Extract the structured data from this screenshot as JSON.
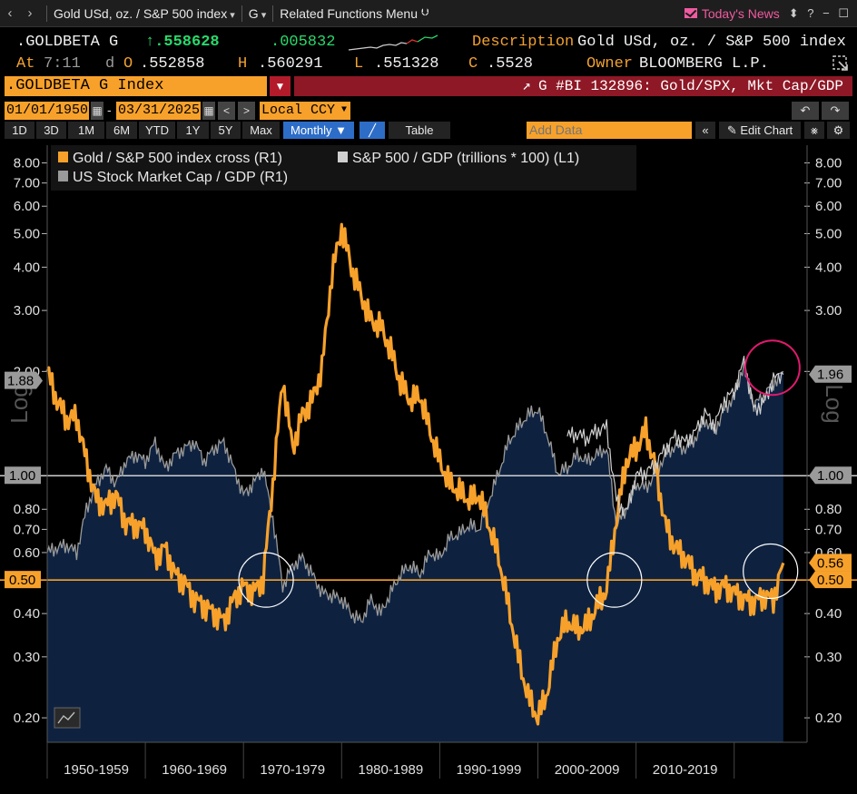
{
  "nav": {
    "back_icon": "chevron-left-icon",
    "forward_icon": "chevron-right-icon",
    "security_menu": "Gold USd, oz. / S&P 500 index",
    "function": "G",
    "related": "Related Functions Menu",
    "related_icon": "double-chevron-down-icon",
    "today_news": "Today's News",
    "window_controls": "⬍ ? − ☐"
  },
  "quote": {
    "ticker": ".GOLDBETA G",
    "last": "↑.558628",
    "change": ".005832",
    "at_label": "At",
    "time": "7:11",
    "d_label": "d",
    "open_label": "O",
    "open": ".552858",
    "high_label": "H",
    "high": ".560291",
    "low_label": "L",
    "low": ".551328",
    "close_label": "C",
    "close": ".5528",
    "desc_label": "Description",
    "description": "Gold USd, oz. / S&P 500 index",
    "owner_label": "Owner",
    "owner": "BLOOMBERG L.P.",
    "sparkline_colors": {
      "up": "#cccccc",
      "down": "#e03030"
    }
  },
  "security_bar": {
    "ticker_field": ".GOLDBETA G Index",
    "chart_title": "G #BI 132896: Gold/SPX, Mkt Cap/GDP",
    "external_icon": "open-external-icon"
  },
  "date_bar": {
    "start": "01/01/1950",
    "dash": "-",
    "end": "03/31/2025",
    "currency": "Local CCY",
    "prev": "<",
    "next": ">",
    "undo": "↶",
    "redo": "↷"
  },
  "range_bar": {
    "ranges": [
      "1D",
      "3D",
      "1M",
      "6M",
      "YTD",
      "1Y",
      "5Y",
      "Max"
    ],
    "frequency": "Monthly ▼",
    "table": "Table",
    "add_data_placeholder": "Add Data",
    "collapse": "«",
    "edit_chart": "Edit Chart",
    "edit_icon": "pencil-icon"
  },
  "chart_data": {
    "type": "line",
    "scale": "log",
    "ylim": [
      0.17,
      9.0
    ],
    "y_ticks": [
      "8.00",
      "7.00",
      "6.00",
      "5.00",
      "4.00",
      "3.00",
      "2.00",
      "1.00",
      "0.80",
      "0.70",
      "0.60",
      "0.50",
      "0.40",
      "0.30",
      "0.20"
    ],
    "y_tick_values": [
      8,
      7,
      6,
      5,
      4,
      3,
      2,
      1,
      0.8,
      0.7,
      0.6,
      0.5,
      0.4,
      0.3,
      0.2
    ],
    "x_labels": [
      "1950-1959",
      "1960-1969",
      "1970-1979",
      "1980-1989",
      "1990-1999",
      "2000-2009",
      "2010-2019"
    ],
    "xlim": [
      1950,
      2025.3
    ],
    "log_label": "Log",
    "legend_position": "top-left",
    "reference_lines": [
      {
        "value": 1.0,
        "label": "1.00",
        "color": "#cfcfcf"
      },
      {
        "value": 0.5,
        "label": "0.50",
        "color": "#f7a12b"
      }
    ],
    "end_labels": [
      {
        "value": 1.88,
        "label": "1.88",
        "side": "left",
        "color": "#9a9a9a"
      },
      {
        "value": 1.96,
        "label": "1.96",
        "side": "right",
        "color": "#9a9a9a"
      },
      {
        "value": 0.56,
        "label": "0.56",
        "side": "right",
        "color": "#f7a12b"
      },
      {
        "value": 0.5,
        "label": "0.50",
        "side": "right",
        "color": "#f7a12b"
      }
    ],
    "annotations": [
      {
        "type": "circle",
        "x": 1972.3,
        "y": 0.5,
        "color": "#ffffff"
      },
      {
        "type": "circle",
        "x": 2007.8,
        "y": 0.5,
        "color": "#ffffff"
      },
      {
        "type": "circle",
        "x": 2023.7,
        "y": 0.53,
        "color": "#ffffff"
      },
      {
        "type": "circle",
        "x": 2023.9,
        "y": 2.05,
        "color": "#e01a6e"
      }
    ],
    "series": [
      {
        "name": "Gold / S&P 500 index cross (R1)",
        "color": "#f7a12b",
        "style": "line",
        "x": [
          1950,
          1951,
          1952,
          1953,
          1954,
          1955,
          1956,
          1957,
          1958,
          1959,
          1960,
          1961,
          1962,
          1963,
          1964,
          1965,
          1966,
          1967,
          1968,
          1969,
          1970,
          1971,
          1972,
          1973,
          1974,
          1975,
          1976,
          1977,
          1978,
          1979,
          1980,
          1981,
          1982,
          1983,
          1984,
          1985,
          1986,
          1987,
          1988,
          1989,
          1990,
          1991,
          1992,
          1993,
          1994,
          1995,
          1996,
          1997,
          1998,
          1999,
          2000,
          2001,
          2002,
          2003,
          2004,
          2005,
          2006,
          2007,
          2008,
          2009,
          2010,
          2011,
          2012,
          2013,
          2014,
          2015,
          2016,
          2017,
          2018,
          2019,
          2020,
          2021,
          2022,
          2023,
          2024,
          2025
        ],
        "values": [
          2.0,
          1.65,
          1.45,
          1.48,
          1.1,
          0.85,
          0.82,
          0.88,
          0.73,
          0.72,
          0.7,
          0.58,
          0.62,
          0.52,
          0.49,
          0.44,
          0.42,
          0.4,
          0.38,
          0.44,
          0.48,
          0.46,
          0.5,
          0.95,
          1.9,
          1.2,
          1.5,
          1.65,
          2.05,
          3.8,
          5.2,
          4.0,
          3.3,
          2.8,
          2.7,
          2.3,
          1.85,
          1.65,
          1.7,
          1.35,
          1.1,
          0.95,
          0.9,
          0.85,
          0.88,
          0.72,
          0.58,
          0.42,
          0.3,
          0.23,
          0.2,
          0.24,
          0.34,
          0.38,
          0.36,
          0.37,
          0.42,
          0.47,
          0.75,
          1.1,
          1.2,
          1.35,
          1.05,
          0.72,
          0.62,
          0.58,
          0.52,
          0.5,
          0.47,
          0.48,
          0.46,
          0.44,
          0.43,
          0.45,
          0.44,
          0.56
        ]
      },
      {
        "name": "S&P 500 / GDP (trillions * 100) (L1)",
        "color": "#cfcfcf",
        "style": "line",
        "x": [
          2003,
          2004,
          2005,
          2006,
          2007,
          2008,
          2009,
          2010,
          2011,
          2012,
          2013,
          2014,
          2015,
          2016,
          2017,
          2018,
          2019,
          2020,
          2021,
          2022,
          2023,
          2024,
          2025
        ],
        "values": [
          1.3,
          1.32,
          1.28,
          1.35,
          1.38,
          0.85,
          0.78,
          1.0,
          1.02,
          1.08,
          1.2,
          1.3,
          1.25,
          1.33,
          1.52,
          1.4,
          1.65,
          1.75,
          2.15,
          1.55,
          1.62,
          1.9,
          1.96
        ]
      },
      {
        "name": "US Stock Market Cap / GDP (R1)",
        "color": "#9a9a9a",
        "style": "area",
        "fill": "#0e2240",
        "x": [
          1950,
          1951,
          1952,
          1953,
          1954,
          1955,
          1956,
          1957,
          1958,
          1959,
          1960,
          1961,
          1962,
          1963,
          1964,
          1965,
          1966,
          1967,
          1968,
          1969,
          1970,
          1971,
          1972,
          1973,
          1974,
          1975,
          1976,
          1977,
          1978,
          1979,
          1980,
          1981,
          1982,
          1983,
          1984,
          1985,
          1986,
          1987,
          1988,
          1989,
          1990,
          1991,
          1992,
          1993,
          1994,
          1995,
          1996,
          1997,
          1998,
          1999,
          2000,
          2001,
          2002,
          2003,
          2004,
          2005,
          2006,
          2007,
          2008,
          2009,
          2010,
          2011,
          2012,
          2013,
          2014,
          2015,
          2016,
          2017,
          2018,
          2019,
          2020,
          2021,
          2022,
          2023,
          2024,
          2025
        ],
        "values": [
          0.6,
          0.62,
          0.63,
          0.6,
          0.8,
          0.95,
          1.05,
          0.95,
          1.1,
          1.15,
          1.1,
          1.25,
          1.05,
          1.15,
          1.2,
          1.25,
          1.1,
          1.2,
          1.25,
          1.05,
          0.88,
          0.95,
          1.05,
          0.75,
          0.48,
          0.55,
          0.58,
          0.52,
          0.46,
          0.45,
          0.44,
          0.4,
          0.38,
          0.44,
          0.4,
          0.46,
          0.52,
          0.55,
          0.52,
          0.6,
          0.58,
          0.66,
          0.68,
          0.72,
          0.7,
          0.85,
          1.02,
          1.25,
          1.38,
          1.5,
          1.55,
          1.3,
          1.02,
          1.05,
          1.15,
          1.1,
          1.15,
          1.2,
          0.72,
          0.8,
          0.95,
          0.92,
          1.02,
          1.15,
          1.22,
          1.2,
          1.28,
          1.45,
          1.35,
          1.55,
          1.7,
          2.1,
          1.6,
          1.7,
          1.85,
          2.0
        ]
      }
    ]
  }
}
